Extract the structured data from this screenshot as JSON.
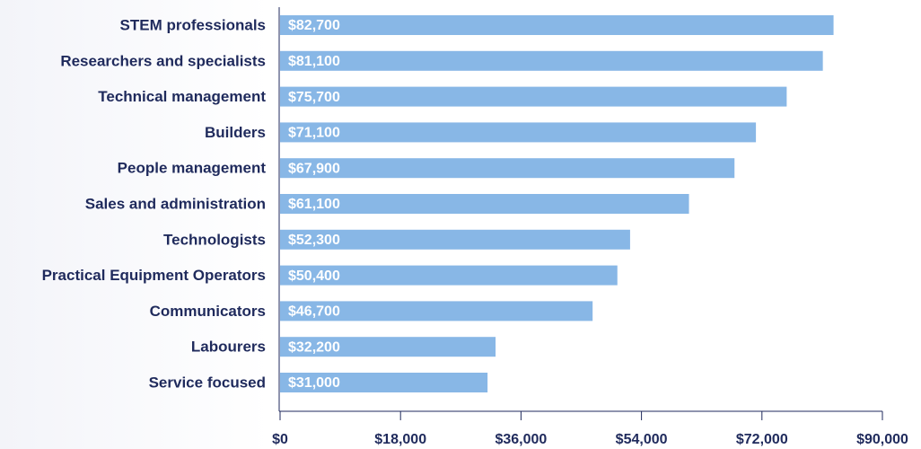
{
  "chart_data": {
    "type": "bar",
    "orientation": "horizontal",
    "categories": [
      "STEM professionals",
      "Researchers and specialists",
      "Technical management",
      "Builders",
      "People management",
      "Sales and administration",
      "Technologists",
      "Practical Equipment Operators",
      "Communicators",
      "Labourers",
      "Service focused"
    ],
    "values": [
      82700,
      81100,
      75700,
      71100,
      67900,
      61100,
      52300,
      50400,
      46700,
      32200,
      31000
    ],
    "value_labels": [
      "$82,700",
      "$81,100",
      "$75,700",
      "$71,100",
      "$67,900",
      "$61,100",
      "$52,300",
      "$50,400",
      "$46,700",
      "$32,200",
      "$31,000"
    ],
    "color": "#88b7e6",
    "xlim": [
      0,
      90000
    ],
    "xticks": [
      {
        "value": 0,
        "label": "$0"
      },
      {
        "value": 18000,
        "label": "$18,000"
      },
      {
        "value": 36000,
        "label": "$36,000"
      },
      {
        "value": 54000,
        "label": "$54,000"
      },
      {
        "value": 72000,
        "label": "$72,000"
      },
      {
        "value": 90000,
        "label": "$90,000"
      }
    ]
  }
}
